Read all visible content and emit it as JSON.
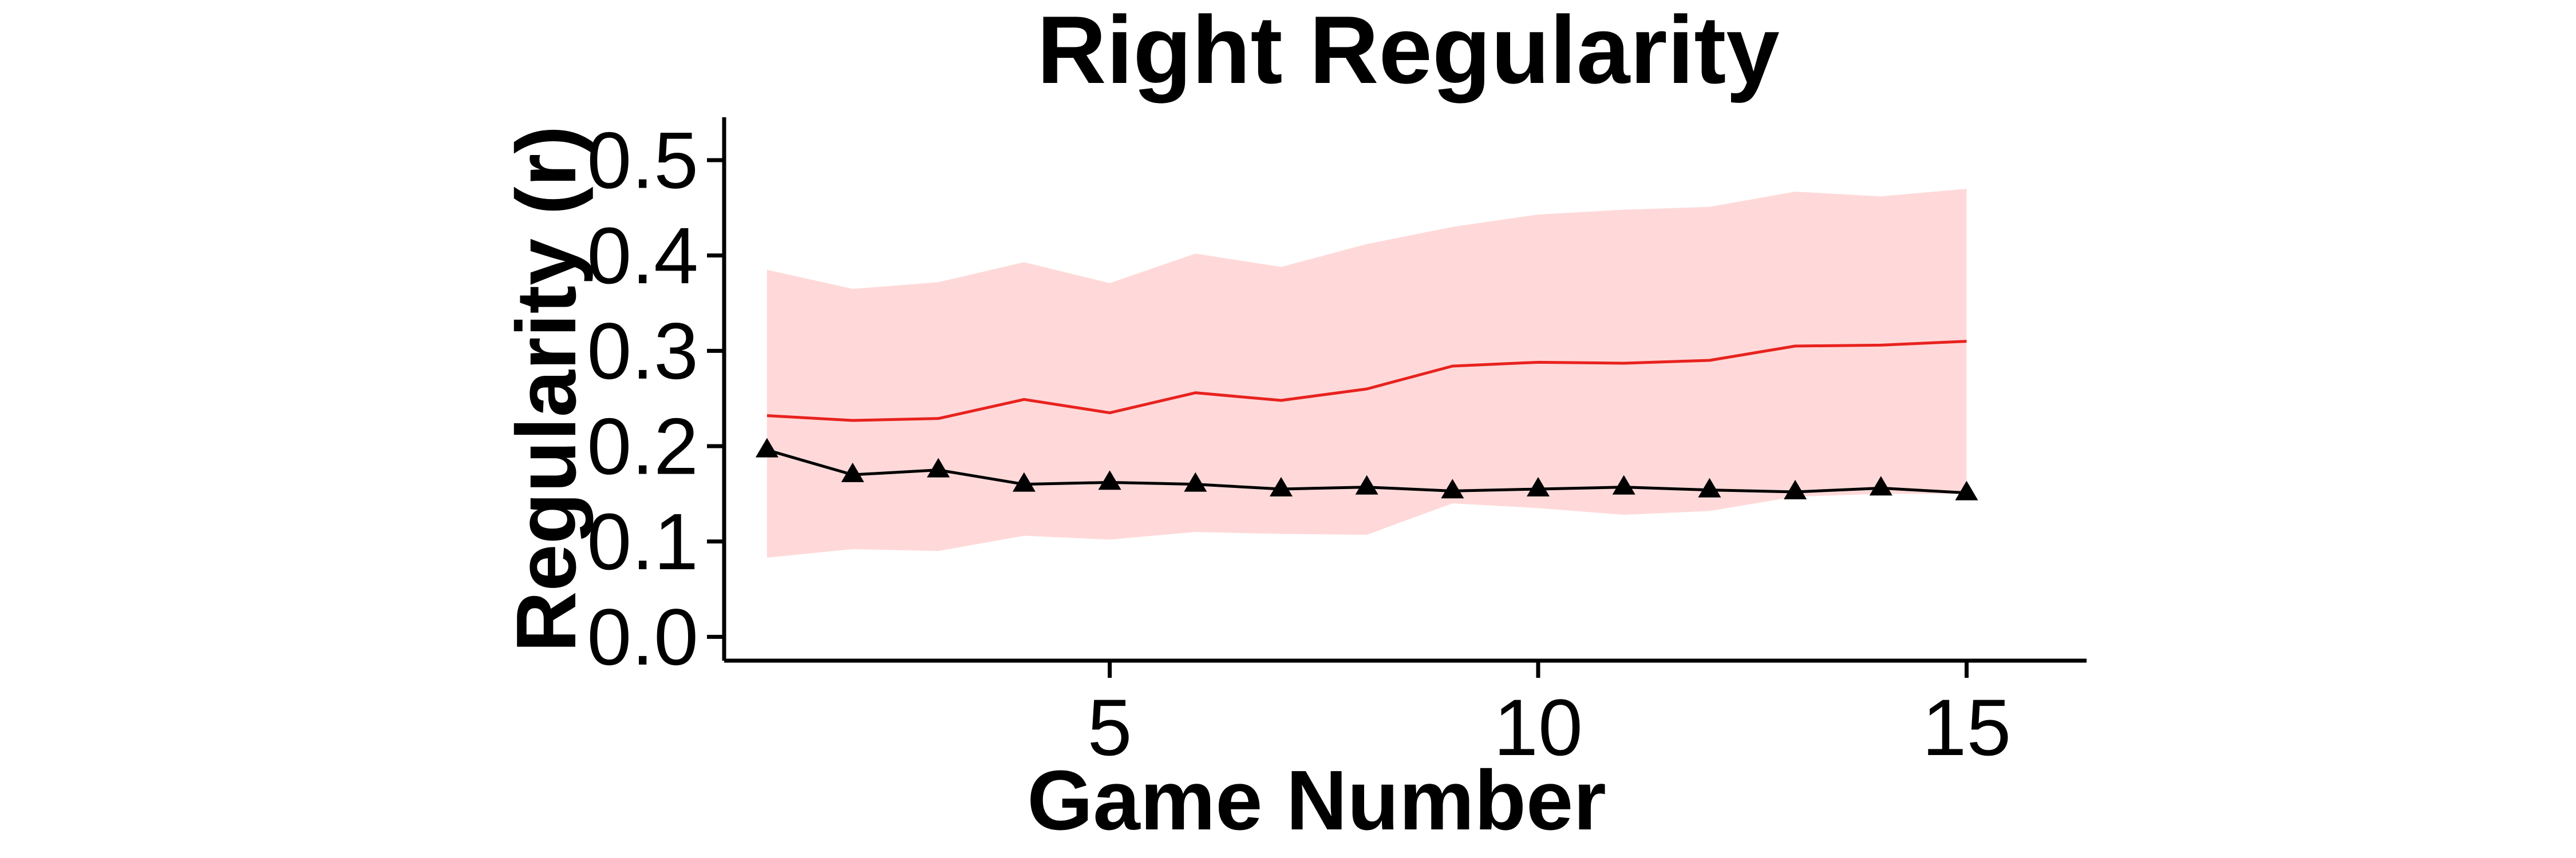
{
  "chart_data": {
    "type": "line",
    "title": "Right Regularity",
    "xlabel": "Game Number",
    "ylabel": "Regularity (r)",
    "xlim": [
      0.5,
      16.4
    ],
    "ylim": [
      -0.025,
      0.545
    ],
    "xticks": [
      5,
      10,
      15
    ],
    "xtick_labels": [
      "5",
      "10",
      "15"
    ],
    "yticks": [
      0.0,
      0.1,
      0.2,
      0.3,
      0.4,
      0.5
    ],
    "ytick_labels": [
      "0.0",
      "0.1",
      "0.2",
      "0.3",
      "0.4",
      "0.5"
    ],
    "grid": false,
    "legend": "none",
    "x": [
      1,
      2,
      3,
      4,
      5,
      6,
      7,
      8,
      9,
      10,
      11,
      12,
      13,
      14,
      15
    ],
    "band": {
      "color": "#ffd9d9",
      "lower": [
        0.083,
        0.092,
        0.09,
        0.106,
        0.102,
        0.11,
        0.108,
        0.107,
        0.14,
        0.135,
        0.128,
        0.132,
        0.147,
        0.15,
        0.15
      ],
      "upper": [
        0.385,
        0.365,
        0.372,
        0.393,
        0.371,
        0.402,
        0.388,
        0.412,
        0.43,
        0.443,
        0.448,
        0.451,
        0.467,
        0.462,
        0.47
      ]
    },
    "series": [
      {
        "color": "#e8221e",
        "marker": "none",
        "values": [
          0.232,
          0.227,
          0.229,
          0.249,
          0.235,
          0.256,
          0.248,
          0.26,
          0.284,
          0.288,
          0.287,
          0.29,
          0.305,
          0.306,
          0.31
        ]
      },
      {
        "color": "#000000",
        "marker": "triangle",
        "values": [
          0.196,
          0.17,
          0.175,
          0.16,
          0.162,
          0.16,
          0.155,
          0.157,
          0.153,
          0.155,
          0.157,
          0.154,
          0.152,
          0.156,
          0.151
        ]
      }
    ]
  }
}
